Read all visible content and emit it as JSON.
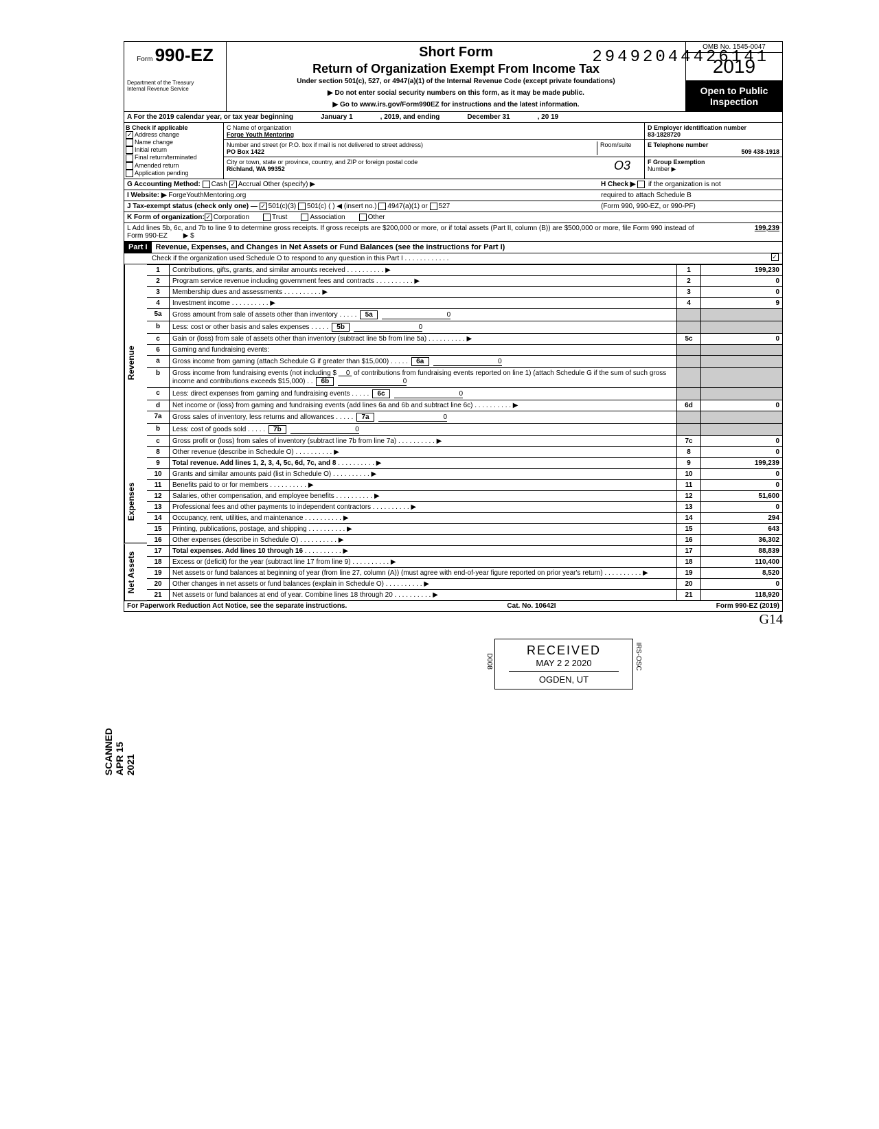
{
  "dln": "29492044426141",
  "header": {
    "form_prefix": "Form",
    "form_number": "990-EZ",
    "dept1": "Department of the Treasury",
    "dept2": "Internal Revenue Service",
    "short_form": "Short Form",
    "title": "Return of Organization Exempt From Income Tax",
    "subtitle": "Under section 501(c), 527, or 4947(a)(1) of the Internal Revenue Code (except private foundations)",
    "instr1": "▶ Do not enter social security numbers on this form, as it may be made public.",
    "instr2": "▶ Go to www.irs.gov/Form990EZ for instructions and the latest information.",
    "omb": "OMB No. 1545-0047",
    "year": "2019",
    "open1": "Open to Public",
    "open2": "Inspection"
  },
  "row_a": {
    "label": "A For the 2019 calendar year, or tax year beginning",
    "begin": "January 1",
    "mid": ", 2019, and ending",
    "end": "December 31",
    "suffix": ", 20   19"
  },
  "section_b": {
    "header": "B Check if applicable",
    "items": [
      {
        "checked": true,
        "label": "Address change"
      },
      {
        "checked": false,
        "label": "Name change"
      },
      {
        "checked": false,
        "label": "Initial return"
      },
      {
        "checked": false,
        "label": "Final return/terminated"
      },
      {
        "checked": false,
        "label": "Amended return"
      },
      {
        "checked": false,
        "label": "Application pending"
      }
    ]
  },
  "section_c": {
    "name_label": "C Name of organization",
    "name": "Forge Youth Mentoring",
    "addr_label": "Number and street (or P.O. box if mail is not delivered to street address)",
    "room_label": "Room/suite",
    "address": "PO Box 1422",
    "city_label": "City or town, state or province, country, and ZIP or foreign postal code",
    "city": "Richland, WA 99352",
    "code": "O3"
  },
  "section_d": {
    "ein_label": "D Employer identification number",
    "ein": "83-1828720",
    "tel_label": "E Telephone number",
    "tel": "509 438-1918",
    "group_label": "F Group Exemption",
    "group2": "Number ▶"
  },
  "row_g": {
    "label": "G Accounting Method:",
    "cash": "Cash",
    "accrual": "Accrual",
    "other": "Other (specify) ▶"
  },
  "row_h": {
    "text1": "H Check ▶",
    "text2": "if the organization is not",
    "text3": "required to attach Schedule B",
    "text4": "(Form 990, 990-EZ, or 990-PF)"
  },
  "row_i": {
    "label": "I Website: ▶",
    "value": "ForgeYouthMentoring.org"
  },
  "row_j": {
    "label": "J Tax-exempt status (check only one) —",
    "opt1": "501(c)(3)",
    "opt2": "501(c) (",
    "opt2b": ") ◀ (insert no.)",
    "opt3": "4947(a)(1) or",
    "opt4": "527"
  },
  "row_k": {
    "label": "K Form of organization:",
    "corp": "Corporation",
    "trust": "Trust",
    "assoc": "Association",
    "other": "Other"
  },
  "row_l": {
    "text": "L Add lines 5b, 6c, and 7b to line 9 to determine gross receipts. If gross receipts are $200,000 or more, or if total assets (Part II, column (B)) are $500,000 or more, file Form 990 instead of Form 990-EZ",
    "arrow": "▶ $",
    "value": "199,239"
  },
  "part1": {
    "label": "Part I",
    "title": "Revenue, Expenses, and Changes in Net Assets or Fund Balances (see the instructions for Part I)",
    "check_line": "Check if the organization used Schedule O to respond to any question in this Part I . . . . . . . . . . . ."
  },
  "vert_labels": {
    "revenue": "Revenue",
    "expenses": "Expenses",
    "netassets": "Net Assets"
  },
  "lines": {
    "l1": {
      "num": "1",
      "desc": "Contributions, gifts, grants, and similar amounts received",
      "box": "1",
      "val": "199,230"
    },
    "l2": {
      "num": "2",
      "desc": "Program service revenue including government fees and contracts",
      "box": "2",
      "val": "0"
    },
    "l3": {
      "num": "3",
      "desc": "Membership dues and assessments",
      "box": "3",
      "val": "0"
    },
    "l4": {
      "num": "4",
      "desc": "Investment income",
      "box": "4",
      "val": "9"
    },
    "l5a": {
      "num": "5a",
      "desc": "Gross amount from sale of assets other than inventory",
      "ibox": "5a",
      "ival": "0"
    },
    "l5b": {
      "num": "b",
      "desc": "Less: cost or other basis and sales expenses",
      "ibox": "5b",
      "ival": "0"
    },
    "l5c": {
      "num": "c",
      "desc": "Gain or (loss) from sale of assets other than inventory (subtract line 5b from line 5a)",
      "box": "5c",
      "val": "0"
    },
    "l6": {
      "num": "6",
      "desc": "Gaming and fundraising events:"
    },
    "l6a": {
      "num": "a",
      "desc": "Gross income from gaming (attach Schedule G if greater than $15,000)",
      "ibox": "6a",
      "ival": "0"
    },
    "l6b": {
      "num": "b",
      "desc": "Gross income from fundraising events (not including  $",
      "desc2": "of contributions from fundraising events reported on line 1) (attach Schedule G if the sum of such gross income and contributions exceeds $15,000)",
      "amt": "0",
      "ibox": "6b",
      "ival": "0"
    },
    "l6c": {
      "num": "c",
      "desc": "Less: direct expenses from gaming and fundraising events",
      "ibox": "6c",
      "ival": "0"
    },
    "l6d": {
      "num": "d",
      "desc": "Net income or (loss) from gaming and fundraising events (add lines 6a and 6b and subtract line 6c)",
      "box": "6d",
      "val": "0"
    },
    "l7a": {
      "num": "7a",
      "desc": "Gross sales of inventory, less returns and allowances",
      "ibox": "7a",
      "ival": "0"
    },
    "l7b": {
      "num": "b",
      "desc": "Less: cost of goods sold",
      "ibox": "7b",
      "ival": "0"
    },
    "l7c": {
      "num": "c",
      "desc": "Gross profit or (loss) from sales of inventory (subtract line 7b from line 7a)",
      "box": "7c",
      "val": "0"
    },
    "l8": {
      "num": "8",
      "desc": "Other revenue (describe in Schedule O)",
      "box": "8",
      "val": "0"
    },
    "l9": {
      "num": "9",
      "desc": "Total revenue. Add lines 1, 2, 3, 4, 5c, 6d, 7c, and 8",
      "box": "9",
      "val": "199,239"
    },
    "l10": {
      "num": "10",
      "desc": "Grants and similar amounts paid (list in Schedule O)",
      "box": "10",
      "val": "0"
    },
    "l11": {
      "num": "11",
      "desc": "Benefits paid to or for members",
      "box": "11",
      "val": "0"
    },
    "l12": {
      "num": "12",
      "desc": "Salaries, other compensation, and employee benefits",
      "box": "12",
      "val": "51,600"
    },
    "l13": {
      "num": "13",
      "desc": "Professional fees and other payments to independent contractors",
      "box": "13",
      "val": "0"
    },
    "l14": {
      "num": "14",
      "desc": "Occupancy, rent, utilities, and maintenance",
      "box": "14",
      "val": "294"
    },
    "l15": {
      "num": "15",
      "desc": "Printing, publications, postage, and shipping",
      "box": "15",
      "val": "643"
    },
    "l16": {
      "num": "16",
      "desc": "Other expenses (describe in Schedule O)",
      "box": "16",
      "val": "36,302"
    },
    "l17": {
      "num": "17",
      "desc": "Total expenses. Add lines 10 through 16",
      "box": "17",
      "val": "88,839"
    },
    "l18": {
      "num": "18",
      "desc": "Excess or (deficit) for the year (subtract line 17 from line 9)",
      "box": "18",
      "val": "110,400"
    },
    "l19": {
      "num": "19",
      "desc": "Net assets or fund balances at beginning of year (from line 27, column (A)) (must agree with end-of-year figure reported on prior year's return)",
      "box": "19",
      "val": "8,520"
    },
    "l20": {
      "num": "20",
      "desc": "Other changes in net assets or fund balances (explain in Schedule O)",
      "box": "20",
      "val": "0"
    },
    "l21": {
      "num": "21",
      "desc": "Net assets or fund balances at end of year. Combine lines 18 through 20",
      "box": "21",
      "val": "118,920"
    }
  },
  "stamp": {
    "received": "RECEIVED",
    "date": "MAY  2 2 2020",
    "loc": "OGDEN, UT",
    "side1": "IRS-OSC",
    "side2": "D008"
  },
  "vert_stamp": "SCANNED APR 15 2021",
  "footer": {
    "left": "For Paperwork Reduction Act Notice, see the separate instructions.",
    "mid": "Cat. No. 10642I",
    "right": "Form 990-EZ (2019)"
  },
  "handwritten": "G14"
}
